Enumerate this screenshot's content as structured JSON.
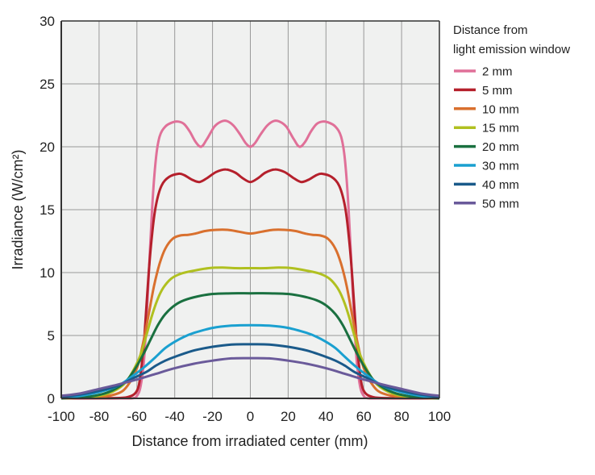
{
  "chart_data": {
    "type": "line",
    "title": "",
    "xlabel": "Distance from irradiated center (mm)",
    "ylabel": "Irradiance (W/cm²)",
    "xlim": [
      -100,
      100
    ],
    "ylim": [
      0,
      30
    ],
    "xticks": [
      -100,
      -80,
      -60,
      -40,
      -20,
      0,
      20,
      40,
      60,
      80,
      100
    ],
    "yticks": [
      0,
      5,
      10,
      15,
      20,
      25,
      30
    ],
    "grid": true,
    "legend": {
      "title": [
        "Distance from",
        "light emission window"
      ],
      "placement": "right"
    },
    "symmetric_about_zero": true,
    "series": [
      {
        "name": "2 mm",
        "color": "#e07098",
        "half_points": [
          [
            -100,
            0
          ],
          [
            -70,
            0
          ],
          [
            -62,
            0.02
          ],
          [
            -60,
            0.2
          ],
          [
            -58,
            1
          ],
          [
            -56,
            3.5
          ],
          [
            -54,
            9
          ],
          [
            -52,
            15
          ],
          [
            -50,
            19
          ],
          [
            -48,
            20.8
          ],
          [
            -45,
            21.6
          ],
          [
            -41,
            21.95
          ],
          [
            -38,
            22
          ],
          [
            -35,
            21.8
          ],
          [
            -32,
            21.2
          ],
          [
            -29,
            20.4
          ],
          [
            -26,
            20
          ],
          [
            -23,
            20.6
          ],
          [
            -19,
            21.6
          ],
          [
            -15.5,
            22
          ],
          [
            -12.5,
            22.05
          ],
          [
            -9,
            21.7
          ],
          [
            -5.5,
            21
          ],
          [
            -2.5,
            20.3
          ],
          [
            0,
            20
          ]
        ]
      },
      {
        "name": "5 mm",
        "color": "#b5202c",
        "half_points": [
          [
            -100,
            0
          ],
          [
            -75,
            0.02
          ],
          [
            -65,
            0.1
          ],
          [
            -60,
            0.6
          ],
          [
            -58,
            2
          ],
          [
            -56,
            5
          ],
          [
            -54,
            9.5
          ],
          [
            -52,
            13
          ],
          [
            -50,
            15.3
          ],
          [
            -47,
            16.9
          ],
          [
            -43,
            17.6
          ],
          [
            -38,
            17.85
          ],
          [
            -35,
            17.75
          ],
          [
            -31,
            17.4
          ],
          [
            -27,
            17.2
          ],
          [
            -23,
            17.5
          ],
          [
            -18,
            18
          ],
          [
            -13,
            18.2
          ],
          [
            -8,
            17.95
          ],
          [
            -4,
            17.5
          ],
          [
            0,
            17.2
          ]
        ]
      },
      {
        "name": "10 mm",
        "color": "#d9702e",
        "half_points": [
          [
            -100,
            0
          ],
          [
            -80,
            0.1
          ],
          [
            -70,
            0.4
          ],
          [
            -65,
            1
          ],
          [
            -60,
            2.4
          ],
          [
            -57,
            4.2
          ],
          [
            -54,
            6.5
          ],
          [
            -51,
            8.9
          ],
          [
            -48,
            10.7
          ],
          [
            -45,
            11.9
          ],
          [
            -41,
            12.7
          ],
          [
            -37,
            12.95
          ],
          [
            -33,
            13
          ],
          [
            -29,
            13.1
          ],
          [
            -24,
            13.3
          ],
          [
            -18,
            13.4
          ],
          [
            -12,
            13.4
          ],
          [
            -6,
            13.25
          ],
          [
            0,
            13.1
          ]
        ]
      },
      {
        "name": "15 mm",
        "color": "#b0c020",
        "half_points": [
          [
            -100,
            0
          ],
          [
            -85,
            0.1
          ],
          [
            -75,
            0.4
          ],
          [
            -67,
            1.1
          ],
          [
            -62,
            2.2
          ],
          [
            -58,
            3.5
          ],
          [
            -55,
            5
          ],
          [
            -52,
            6.6
          ],
          [
            -49,
            7.9
          ],
          [
            -46,
            8.8
          ],
          [
            -42,
            9.5
          ],
          [
            -37,
            9.9
          ],
          [
            -30,
            10.15
          ],
          [
            -22,
            10.35
          ],
          [
            -15,
            10.4
          ],
          [
            -8,
            10.35
          ],
          [
            0,
            10.35
          ]
        ]
      },
      {
        "name": "20 mm",
        "color": "#1a7040",
        "half_points": [
          [
            -100,
            0
          ],
          [
            -85,
            0.15
          ],
          [
            -75,
            0.5
          ],
          [
            -67,
            1.2
          ],
          [
            -62,
            2.1
          ],
          [
            -57,
            3.4
          ],
          [
            -53,
            4.6
          ],
          [
            -49,
            5.8
          ],
          [
            -45,
            6.7
          ],
          [
            -40,
            7.4
          ],
          [
            -35,
            7.8
          ],
          [
            -28,
            8.1
          ],
          [
            -20,
            8.3
          ],
          [
            -10,
            8.35
          ],
          [
            0,
            8.35
          ]
        ]
      },
      {
        "name": "30 mm",
        "color": "#1aa0d0",
        "half_points": [
          [
            -100,
            0.05
          ],
          [
            -90,
            0.2
          ],
          [
            -80,
            0.5
          ],
          [
            -70,
            1.0
          ],
          [
            -62,
            1.8
          ],
          [
            -56,
            2.5
          ],
          [
            -50,
            3.3
          ],
          [
            -45,
            4
          ],
          [
            -40,
            4.5
          ],
          [
            -35,
            4.9
          ],
          [
            -30,
            5.2
          ],
          [
            -20,
            5.6
          ],
          [
            -10,
            5.78
          ],
          [
            0,
            5.82
          ]
        ]
      },
      {
        "name": "40 mm",
        "color": "#1a5a8a",
        "half_points": [
          [
            -100,
            0.1
          ],
          [
            -90,
            0.3
          ],
          [
            -80,
            0.6
          ],
          [
            -70,
            1.0
          ],
          [
            -62,
            1.6
          ],
          [
            -55,
            2.1
          ],
          [
            -50,
            2.6
          ],
          [
            -45,
            3.0
          ],
          [
            -40,
            3.3
          ],
          [
            -30,
            3.8
          ],
          [
            -20,
            4.1
          ],
          [
            -10,
            4.28
          ],
          [
            0,
            4.3
          ]
        ]
      },
      {
        "name": "50 mm",
        "color": "#6a5a9a",
        "half_points": [
          [
            -100,
            0.2
          ],
          [
            -90,
            0.4
          ],
          [
            -80,
            0.75
          ],
          [
            -70,
            1.1
          ],
          [
            -60,
            1.5
          ],
          [
            -50,
            1.95
          ],
          [
            -40,
            2.4
          ],
          [
            -30,
            2.75
          ],
          [
            -20,
            3.0
          ],
          [
            -10,
            3.18
          ],
          [
            0,
            3.2
          ]
        ]
      }
    ]
  }
}
